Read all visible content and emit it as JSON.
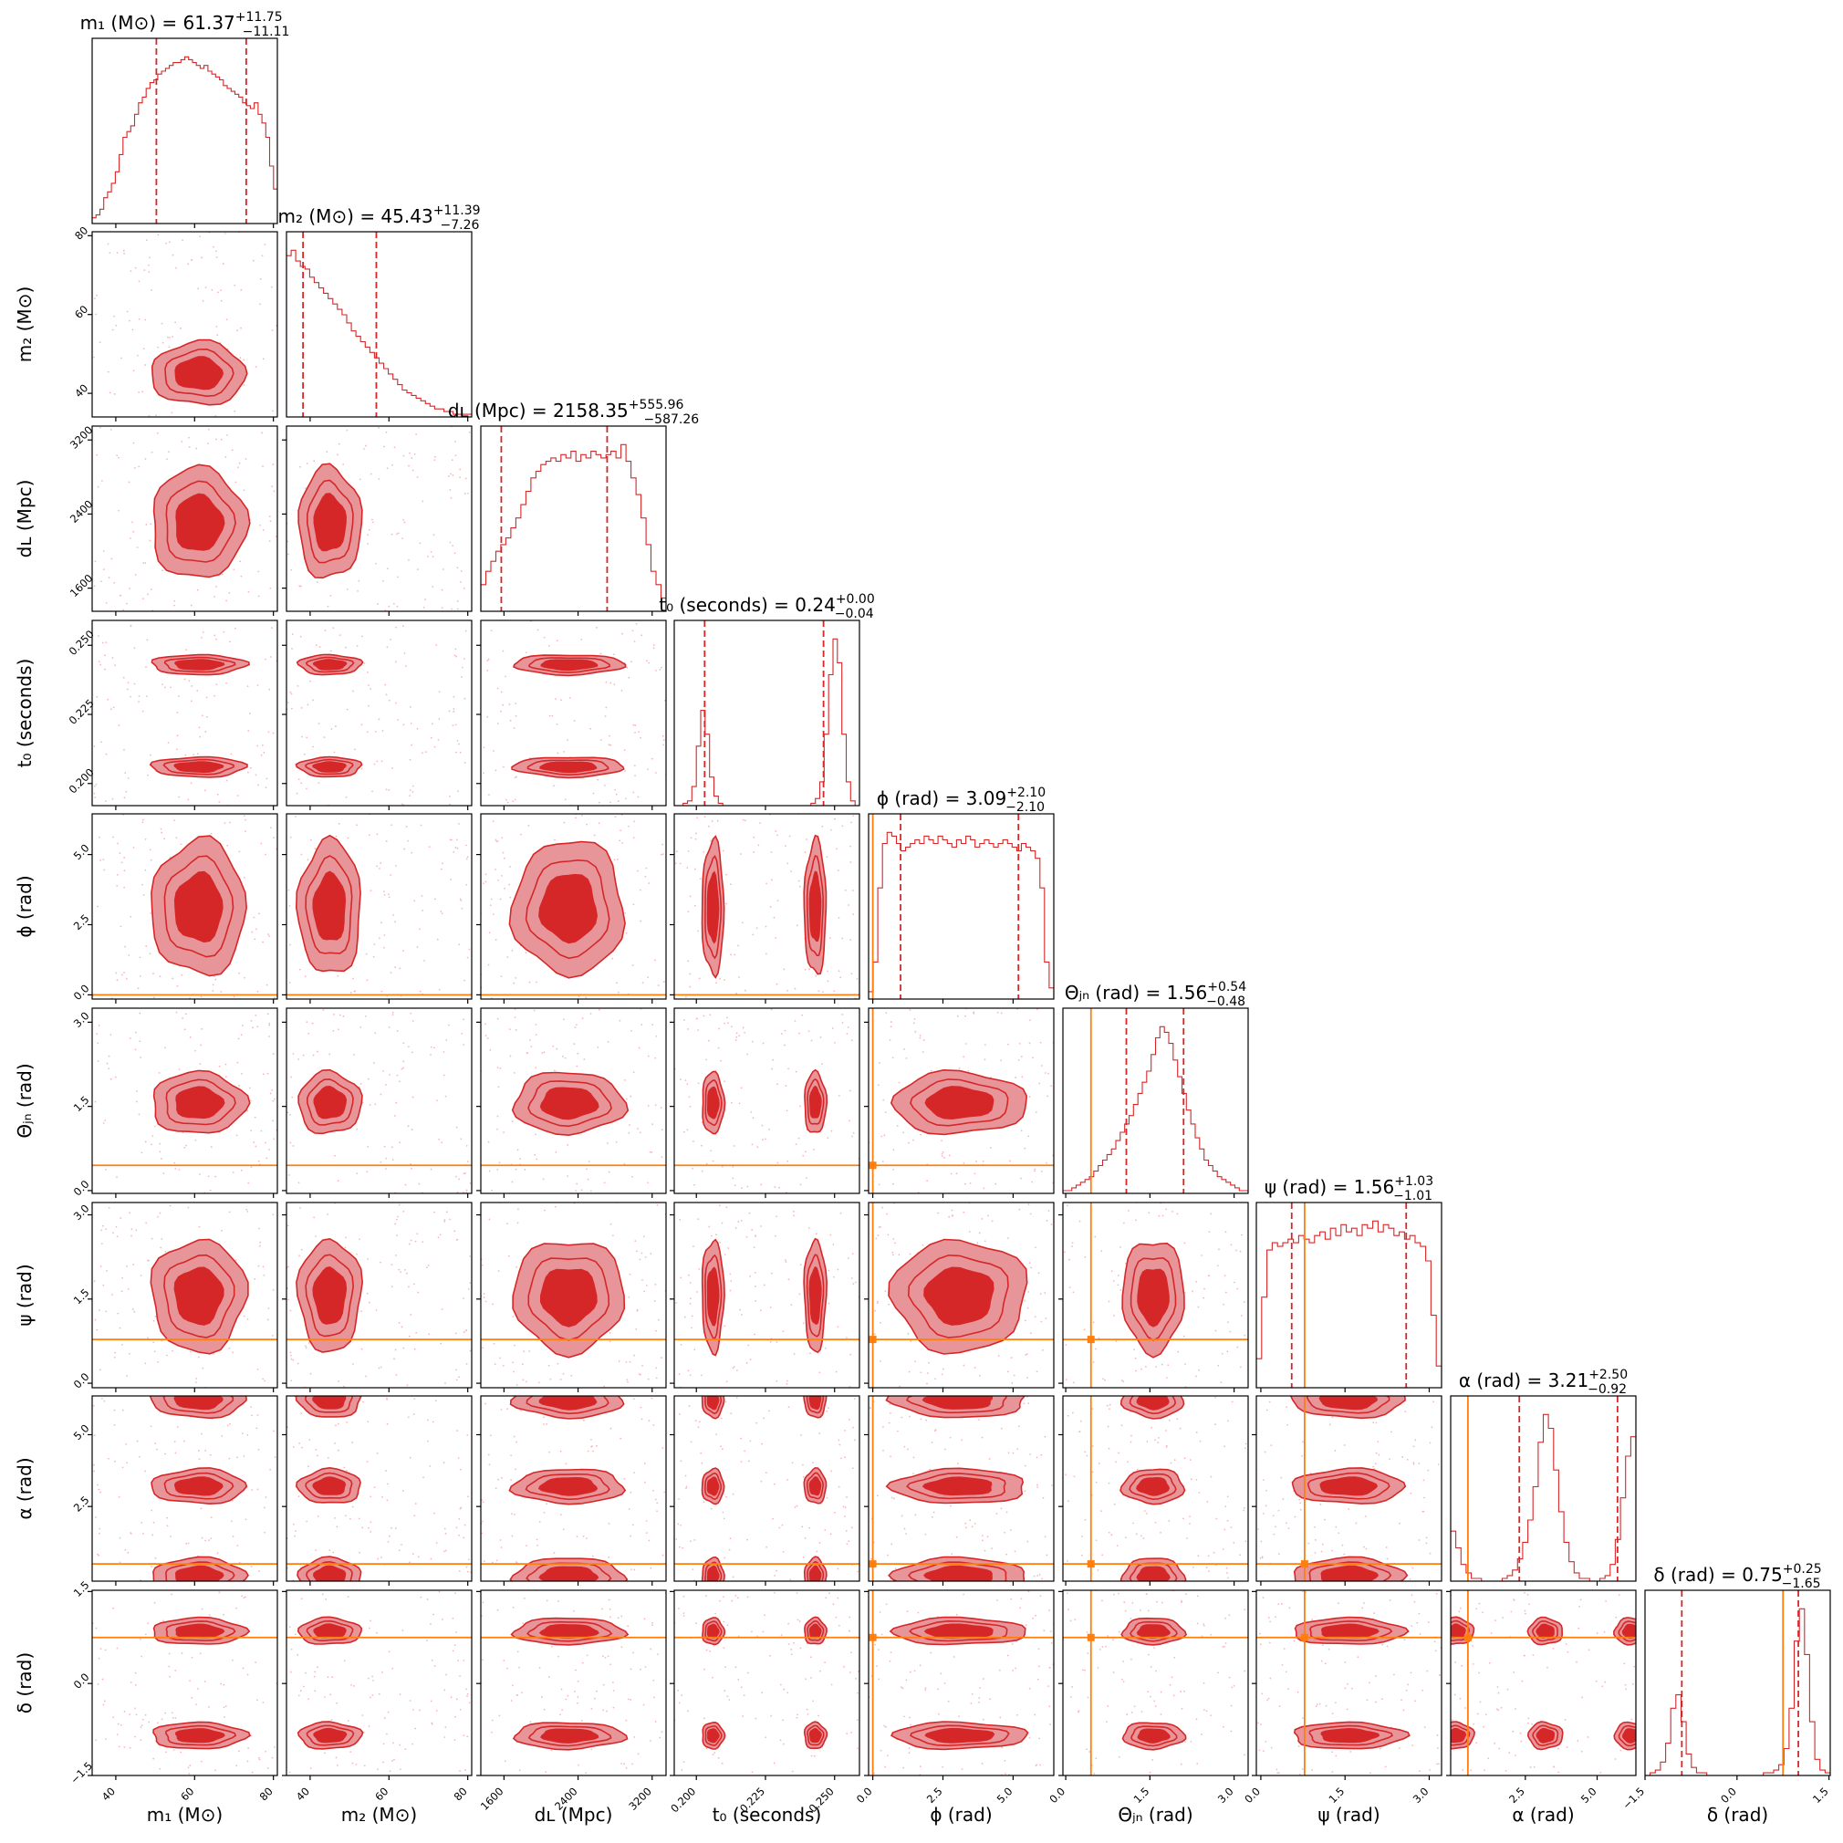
{
  "chart_data": {
    "type": "corner",
    "colors": {
      "posterior": "#d62728",
      "posterior_light": "#e8959a",
      "truth": "#ff7f0e"
    },
    "parameters": [
      {
        "key": "m1",
        "label": "m₁ (M⊙)",
        "title_name": "m₁ (M⊙)",
        "median": "61.37",
        "plus": "+11.75",
        "minus": "−11.11",
        "range": [
          34,
          81
        ],
        "ticks": [
          40,
          60,
          80
        ],
        "tick_labels": [
          "40",
          "60",
          "80"
        ],
        "q_low": 50.3,
        "q_high": 73.1,
        "truth": null,
        "hist": [
          2,
          3,
          5,
          9,
          11,
          14,
          18,
          24,
          30,
          32,
          34,
          38,
          42,
          44,
          47,
          49,
          50,
          52,
          53,
          54,
          55,
          56,
          56,
          57,
          58,
          57,
          56,
          55,
          54,
          55,
          53,
          52,
          51,
          50,
          48,
          47,
          46,
          45,
          44,
          42,
          41,
          40,
          42,
          38,
          35,
          30,
          20,
          12
        ]
      },
      {
        "key": "m2",
        "label": "m₂ (M⊙)",
        "title_name": "m₂ (M⊙)",
        "median": "45.43",
        "plus": "+11.39",
        "minus": "−7.26",
        "range": [
          34,
          81
        ],
        "ticks": [
          40,
          60,
          80
        ],
        "tick_labels": [
          "40",
          "60",
          "80"
        ],
        "q_low": 38.2,
        "q_high": 56.8,
        "truth": null,
        "hist": [
          60,
          62,
          58,
          56,
          55,
          52,
          50,
          48,
          46,
          44,
          42,
          40,
          38,
          35,
          32,
          30,
          28,
          26,
          24,
          22,
          20,
          18,
          16,
          14,
          12,
          10,
          9,
          8,
          7,
          6,
          5,
          4,
          3,
          3,
          2,
          2,
          1,
          1,
          1,
          1
        ]
      },
      {
        "key": "dL",
        "label": "dʟ (Mpc)",
        "title_name": "dʟ (Mpc)",
        "median": "2158.35",
        "plus": "+555.96",
        "minus": "−587.26",
        "range": [
          1350,
          3350
        ],
        "ticks": [
          1600,
          2400,
          3200
        ],
        "tick_labels": [
          "1600",
          "2400",
          "3200"
        ],
        "q_low": 1571,
        "q_high": 2714,
        "truth": null,
        "hist": [
          8,
          12,
          15,
          18,
          20,
          22,
          25,
          28,
          32,
          36,
          40,
          42,
          44,
          45,
          46,
          45,
          47,
          46,
          48,
          45,
          47,
          46,
          48,
          47,
          46,
          47,
          48,
          46,
          50,
          45,
          40,
          35,
          28,
          20,
          12,
          8,
          4
        ]
      },
      {
        "key": "t0",
        "label": "t₀ (seconds)",
        "title_name": "t₀ (seconds)",
        "median": "0.24",
        "plus": "+0.00",
        "minus": "−0.04",
        "range": [
          0.192,
          0.259
        ],
        "ticks": [
          0.2,
          0.225,
          0.25
        ],
        "tick_labels": [
          "0.200",
          "0.225",
          "0.250"
        ],
        "q_low": 0.203,
        "q_high": 0.246,
        "truth": null,
        "hist": [
          0,
          0,
          1,
          2,
          8,
          25,
          40,
          30,
          12,
          4,
          1,
          0,
          0,
          0,
          0,
          0,
          0,
          0,
          0,
          0,
          0,
          0,
          0,
          0,
          0,
          0,
          0,
          0,
          0,
          0,
          0,
          1,
          3,
          10,
          30,
          55,
          70,
          60,
          30,
          10,
          2,
          0
        ]
      },
      {
        "key": "phi",
        "label": "ϕ (rad)",
        "title_name": "ϕ (rad)",
        "median": "3.09",
        "plus": "+2.10",
        "minus": "−2.10",
        "range": [
          -0.15,
          6.45
        ],
        "ticks": [
          0,
          2.5,
          5
        ],
        "tick_labels": [
          "0.0",
          "2.5",
          "5.0"
        ],
        "q_low": 0.99,
        "q_high": 5.19,
        "truth": 0.0,
        "hist": [
          2,
          10,
          30,
          42,
          45,
          44,
          42,
          40,
          41,
          42,
          43,
          42,
          44,
          43,
          42,
          44,
          43,
          42,
          41,
          43,
          42,
          44,
          43,
          41,
          42,
          43,
          42,
          41,
          42,
          43,
          42,
          41,
          40,
          42,
          41,
          40,
          38,
          30,
          10,
          3
        ]
      },
      {
        "key": "theta_jn",
        "label": "Θⱼₙ (rad)",
        "title_name": "Θⱼₙ (rad)",
        "median": "1.56",
        "plus": "+0.54",
        "minus": "−0.48",
        "range": [
          -0.05,
          3.25
        ],
        "ticks": [
          0,
          1.5,
          3
        ],
        "tick_labels": [
          "0.0",
          "1.5",
          "3.0"
        ],
        "q_low": 1.08,
        "q_high": 2.1,
        "truth": 0.45,
        "hist": [
          1,
          1,
          2,
          3,
          4,
          5,
          6,
          8,
          10,
          12,
          14,
          16,
          19,
          22,
          25,
          28,
          32,
          36,
          40,
          44,
          50,
          56,
          60,
          58,
          54,
          48,
          42,
          36,
          30,
          25,
          20,
          16,
          12,
          10,
          8,
          6,
          5,
          4,
          3,
          2,
          1,
          1
        ]
      },
      {
        "key": "psi",
        "label": "ψ (rad)",
        "title_name": "ψ (rad)",
        "median": "1.56",
        "plus": "+1.03",
        "minus": "−1.01",
        "range": [
          -0.08,
          3.22
        ],
        "ticks": [
          0,
          1.5,
          3
        ],
        "tick_labels": [
          "0.0",
          "1.5",
          "3.0"
        ],
        "q_low": 0.55,
        "q_high": 2.59,
        "truth": 0.78,
        "hist": [
          8,
          25,
          38,
          40,
          39,
          40,
          41,
          40,
          42,
          41,
          40,
          42,
          43,
          41,
          44,
          42,
          45,
          43,
          44,
          42,
          45,
          44,
          46,
          43,
          45,
          44,
          42,
          43,
          41,
          42,
          40,
          39,
          35,
          20,
          6
        ]
      },
      {
        "key": "alpha",
        "label": "α (rad)",
        "title_name": "α (rad)",
        "median": "3.21",
        "plus": "+2.50",
        "minus": "−0.92",
        "range": [
          -0.1,
          6.35
        ],
        "ticks": [
          2.5,
          5
        ],
        "tick_labels": [
          "2.5",
          "5.0"
        ],
        "q_low": 2.29,
        "q_high": 5.71,
        "truth": 0.5,
        "hist": [
          18,
          12,
          6,
          3,
          1,
          1,
          0,
          0,
          0,
          0,
          1,
          2,
          4,
          8,
          14,
          22,
          34,
          50,
          60,
          55,
          40,
          25,
          14,
          7,
          3,
          1,
          1,
          0,
          0,
          1,
          2,
          6,
          15,
          30,
          45,
          52
        ]
      },
      {
        "key": "delta",
        "label": "δ (rad)",
        "title_name": "δ (rad)",
        "median": "0.75",
        "plus": "+0.25",
        "minus": "−1.65",
        "range": [
          -1.5,
          1.52
        ],
        "ticks": [
          -1.5,
          0,
          1.5
        ],
        "tick_labels": [
          "−1.5",
          "0.0",
          "1.5"
        ],
        "q_low": -0.9,
        "q_high": 1.0,
        "truth": 0.75,
        "hist": [
          0,
          1,
          2,
          5,
          12,
          25,
          30,
          20,
          8,
          3,
          1,
          1,
          0,
          0,
          0,
          0,
          0,
          0,
          0,
          0,
          0,
          0,
          0,
          1,
          1,
          2,
          4,
          10,
          25,
          50,
          62,
          45,
          20,
          6,
          2,
          1
        ]
      }
    ]
  }
}
